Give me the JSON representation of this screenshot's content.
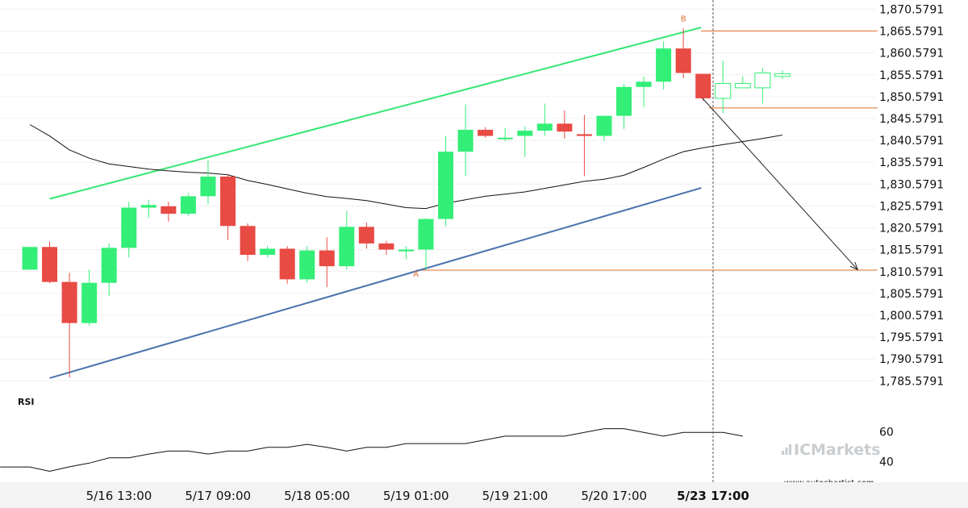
{
  "chart_data": {
    "type": "candlestick",
    "price_axis": {
      "ylim": [
        1781.5791,
        1871.5791
      ],
      "ticks": [
        "1,870.5791",
        "1,865.5791",
        "1,860.5791",
        "1,855.5791",
        "1,850.5791",
        "1,845.5791",
        "1,840.5791",
        "1,835.5791",
        "1,830.5791",
        "1,825.5791",
        "1,820.5791",
        "1,815.5791",
        "1,810.5791",
        "1,805.5791",
        "1,800.5791",
        "1,795.5791",
        "1,790.5791",
        "1,785.5791"
      ]
    },
    "x_ticks": [
      {
        "label": "5/16 13:00",
        "bar": 4.5,
        "bold": false
      },
      {
        "label": "5/17 09:00",
        "bar": 9.5,
        "bold": false
      },
      {
        "label": "5/18 05:00",
        "bar": 14.5,
        "bold": false
      },
      {
        "label": "5/19 01:00",
        "bar": 19.5,
        "bold": false
      },
      {
        "label": "5/19 21:00",
        "bar": 24.5,
        "bold": false
      },
      {
        "label": "5/20 17:00",
        "bar": 29.5,
        "bold": false
      },
      {
        "label": "5/23 17:00",
        "bar": 34.5,
        "bold": true
      }
    ],
    "candles": [
      {
        "o": 1811.0,
        "h": 1816.2,
        "l": 1811.0,
        "c": 1816.2
      },
      {
        "o": 1816.2,
        "h": 1817.4,
        "l": 1807.9,
        "c": 1808.2
      },
      {
        "o": 1808.2,
        "h": 1810.3,
        "l": 1786.3,
        "c": 1798.8
      },
      {
        "o": 1798.8,
        "h": 1811.0,
        "l": 1798.2,
        "c": 1808.0
      },
      {
        "o": 1808.0,
        "h": 1817.0,
        "l": 1805.0,
        "c": 1816.0
      },
      {
        "o": 1816.0,
        "h": 1826.5,
        "l": 1813.8,
        "c": 1825.2
      },
      {
        "o": 1825.2,
        "h": 1827.0,
        "l": 1822.8,
        "c": 1825.8
      },
      {
        "o": 1825.5,
        "h": 1826.5,
        "l": 1822.0,
        "c": 1823.8
      },
      {
        "o": 1823.8,
        "h": 1828.5,
        "l": 1823.3,
        "c": 1827.8
      },
      {
        "o": 1827.8,
        "h": 1836.0,
        "l": 1826.0,
        "c": 1832.3
      },
      {
        "o": 1832.3,
        "h": 1832.9,
        "l": 1817.8,
        "c": 1821.0
      },
      {
        "o": 1821.0,
        "h": 1821.6,
        "l": 1813.0,
        "c": 1814.4
      },
      {
        "o": 1814.4,
        "h": 1816.4,
        "l": 1813.8,
        "c": 1815.8
      },
      {
        "o": 1815.8,
        "h": 1816.4,
        "l": 1807.8,
        "c": 1808.8
      },
      {
        "o": 1808.8,
        "h": 1816.4,
        "l": 1808.0,
        "c": 1815.4
      },
      {
        "o": 1815.4,
        "h": 1818.4,
        "l": 1807.0,
        "c": 1811.8
      },
      {
        "o": 1811.8,
        "h": 1824.4,
        "l": 1811.0,
        "c": 1820.8
      },
      {
        "o": 1820.8,
        "h": 1821.8,
        "l": 1815.8,
        "c": 1817.0
      },
      {
        "o": 1817.0,
        "h": 1817.6,
        "l": 1814.4,
        "c": 1815.6
      },
      {
        "o": 1815.2,
        "h": 1816.4,
        "l": 1813.4,
        "c": 1815.6
      },
      {
        "o": 1815.6,
        "h": 1822.8,
        "l": 1811.0,
        "c": 1822.6
      },
      {
        "o": 1822.6,
        "h": 1841.6,
        "l": 1821.0,
        "c": 1838.0
      },
      {
        "o": 1838.0,
        "h": 1848.8,
        "l": 1832.5,
        "c": 1843.0
      },
      {
        "o": 1843.0,
        "h": 1843.6,
        "l": 1841.2,
        "c": 1841.6
      },
      {
        "o": 1841.2,
        "h": 1843.4,
        "l": 1840.4,
        "c": 1841.2
      },
      {
        "o": 1841.6,
        "h": 1843.8,
        "l": 1836.8,
        "c": 1842.8
      },
      {
        "o": 1842.8,
        "h": 1849.0,
        "l": 1841.6,
        "c": 1844.4
      },
      {
        "o": 1844.4,
        "h": 1847.4,
        "l": 1841.0,
        "c": 1842.6
      },
      {
        "o": 1842.0,
        "h": 1846.4,
        "l": 1832.4,
        "c": 1841.6
      },
      {
        "o": 1841.6,
        "h": 1846.2,
        "l": 1840.4,
        "c": 1846.2
      },
      {
        "o": 1846.2,
        "h": 1853.5,
        "l": 1843.2,
        "c": 1852.8
      },
      {
        "o": 1852.8,
        "h": 1855.2,
        "l": 1848.2,
        "c": 1854.0
      },
      {
        "o": 1854.0,
        "h": 1863.2,
        "l": 1852.2,
        "c": 1861.6
      },
      {
        "o": 1861.6,
        "h": 1866.2,
        "l": 1854.8,
        "c": 1856.0
      },
      {
        "o": 1855.8,
        "h": 1855.8,
        "l": 1849.6,
        "c": 1850.2
      },
      {
        "o": 1850.2,
        "h": 1858.8,
        "l": 1846.8,
        "c": 1853.6,
        "hollow": true
      },
      {
        "o": 1852.6,
        "h": 1855.2,
        "l": 1852.6,
        "c": 1853.6,
        "hollow": true
      },
      {
        "o": 1852.6,
        "h": 1857.2,
        "l": 1849.0,
        "c": 1856.0,
        "hollow": true
      },
      {
        "o": 1855.2,
        "h": 1856.6,
        "l": 1854.6,
        "c": 1855.8,
        "hollow": true
      }
    ],
    "moving_average": [
      [
        0,
        1844.2
      ],
      [
        1,
        1841.6
      ],
      [
        2,
        1838.4
      ],
      [
        3,
        1836.5
      ],
      [
        4,
        1835.2
      ],
      [
        5,
        1834.6
      ],
      [
        6,
        1834.0
      ],
      [
        7,
        1833.6
      ],
      [
        8,
        1833.3
      ],
      [
        9,
        1833.1
      ],
      [
        10,
        1832.7
      ],
      [
        11,
        1831.4
      ],
      [
        12,
        1830.5
      ],
      [
        13,
        1829.5
      ],
      [
        14,
        1828.5
      ],
      [
        15,
        1827.7
      ],
      [
        16,
        1827.3
      ],
      [
        17,
        1826.8
      ],
      [
        18,
        1826.0
      ],
      [
        19,
        1825.2
      ],
      [
        20,
        1825.0
      ],
      [
        21,
        1826.2
      ],
      [
        22,
        1827.0
      ],
      [
        23,
        1827.8
      ],
      [
        24,
        1828.3
      ],
      [
        25,
        1828.8
      ],
      [
        26,
        1829.6
      ],
      [
        27,
        1830.4
      ],
      [
        28,
        1831.2
      ],
      [
        29,
        1831.7
      ],
      [
        30,
        1832.6
      ],
      [
        31,
        1834.4
      ],
      [
        32,
        1836.3
      ],
      [
        33,
        1838.0
      ],
      [
        34,
        1838.9
      ],
      [
        35,
        1839.6
      ],
      [
        36,
        1840.3
      ],
      [
        37,
        1841.0
      ],
      [
        38,
        1841.8
      ]
    ],
    "channel_upper": [
      [
        1,
        1827.2
      ],
      [
        33.9,
        1866.4
      ]
    ],
    "channel_lower": [
      [
        1,
        1786.2
      ],
      [
        33.9,
        1829.7
      ]
    ],
    "levels": [
      {
        "price": 1865.6,
        "from": 33.9,
        "to": 42.8
      },
      {
        "price": 1848.0,
        "from": 34.3,
        "to": 42.8
      },
      {
        "price": 1810.9,
        "from": 19.5,
        "to": 42.8
      }
    ],
    "forecast_arrow": [
      [
        33.95,
        1850.3
      ],
      [
        41.8,
        1811.0
      ]
    ],
    "point_labels": [
      {
        "text": "A",
        "bar": 19.5,
        "price": 1809.4
      },
      {
        "text": "B",
        "bar": 33.0,
        "price": 1867.8
      }
    ],
    "signal_bar": 34.5,
    "rsi": {
      "title": "RSI",
      "ticks": [
        60,
        40
      ],
      "ylim": [
        30,
        72
      ],
      "values": [
        [
          -1.5,
          36.4
        ],
        [
          0,
          36.4
        ],
        [
          1,
          33.5
        ],
        [
          2,
          36.5
        ],
        [
          3,
          39.0
        ],
        [
          4,
          42.5
        ],
        [
          5,
          42.5
        ],
        [
          6,
          45.0
        ],
        [
          7,
          47.0
        ],
        [
          8,
          47.0
        ],
        [
          9,
          45.0
        ],
        [
          10,
          47.0
        ],
        [
          11,
          47.0
        ],
        [
          12,
          49.5
        ],
        [
          13,
          49.5
        ],
        [
          14,
          51.5
        ],
        [
          15,
          49.5
        ],
        [
          16,
          47.0
        ],
        [
          17,
          49.5
        ],
        [
          18,
          49.5
        ],
        [
          19,
          52.0
        ],
        [
          20,
          52.0
        ],
        [
          21,
          52.0
        ],
        [
          22,
          52.0
        ],
        [
          23,
          54.5
        ],
        [
          24,
          57.0
        ],
        [
          25,
          57.0
        ],
        [
          26,
          57.0
        ],
        [
          27,
          57.0
        ],
        [
          28,
          59.5
        ],
        [
          29,
          62.0
        ],
        [
          30,
          62.0
        ],
        [
          31,
          59.5
        ],
        [
          32,
          57.0
        ],
        [
          33,
          59.5
        ],
        [
          34,
          59.5
        ],
        [
          35,
          59.5
        ],
        [
          36,
          57.0
        ]
      ]
    },
    "colors": {
      "up": "#33ee77",
      "down": "#e84a44",
      "ma": "#111111",
      "upper": "#33e873",
      "lower": "#4a72ad",
      "level": "#e06c2a",
      "arrow": "#222222",
      "grid": "#f0f0f0",
      "axis_text": "#111111"
    }
  },
  "watermark": {
    "brand": "ICMarkets",
    "site": "www.autochartist.com"
  }
}
